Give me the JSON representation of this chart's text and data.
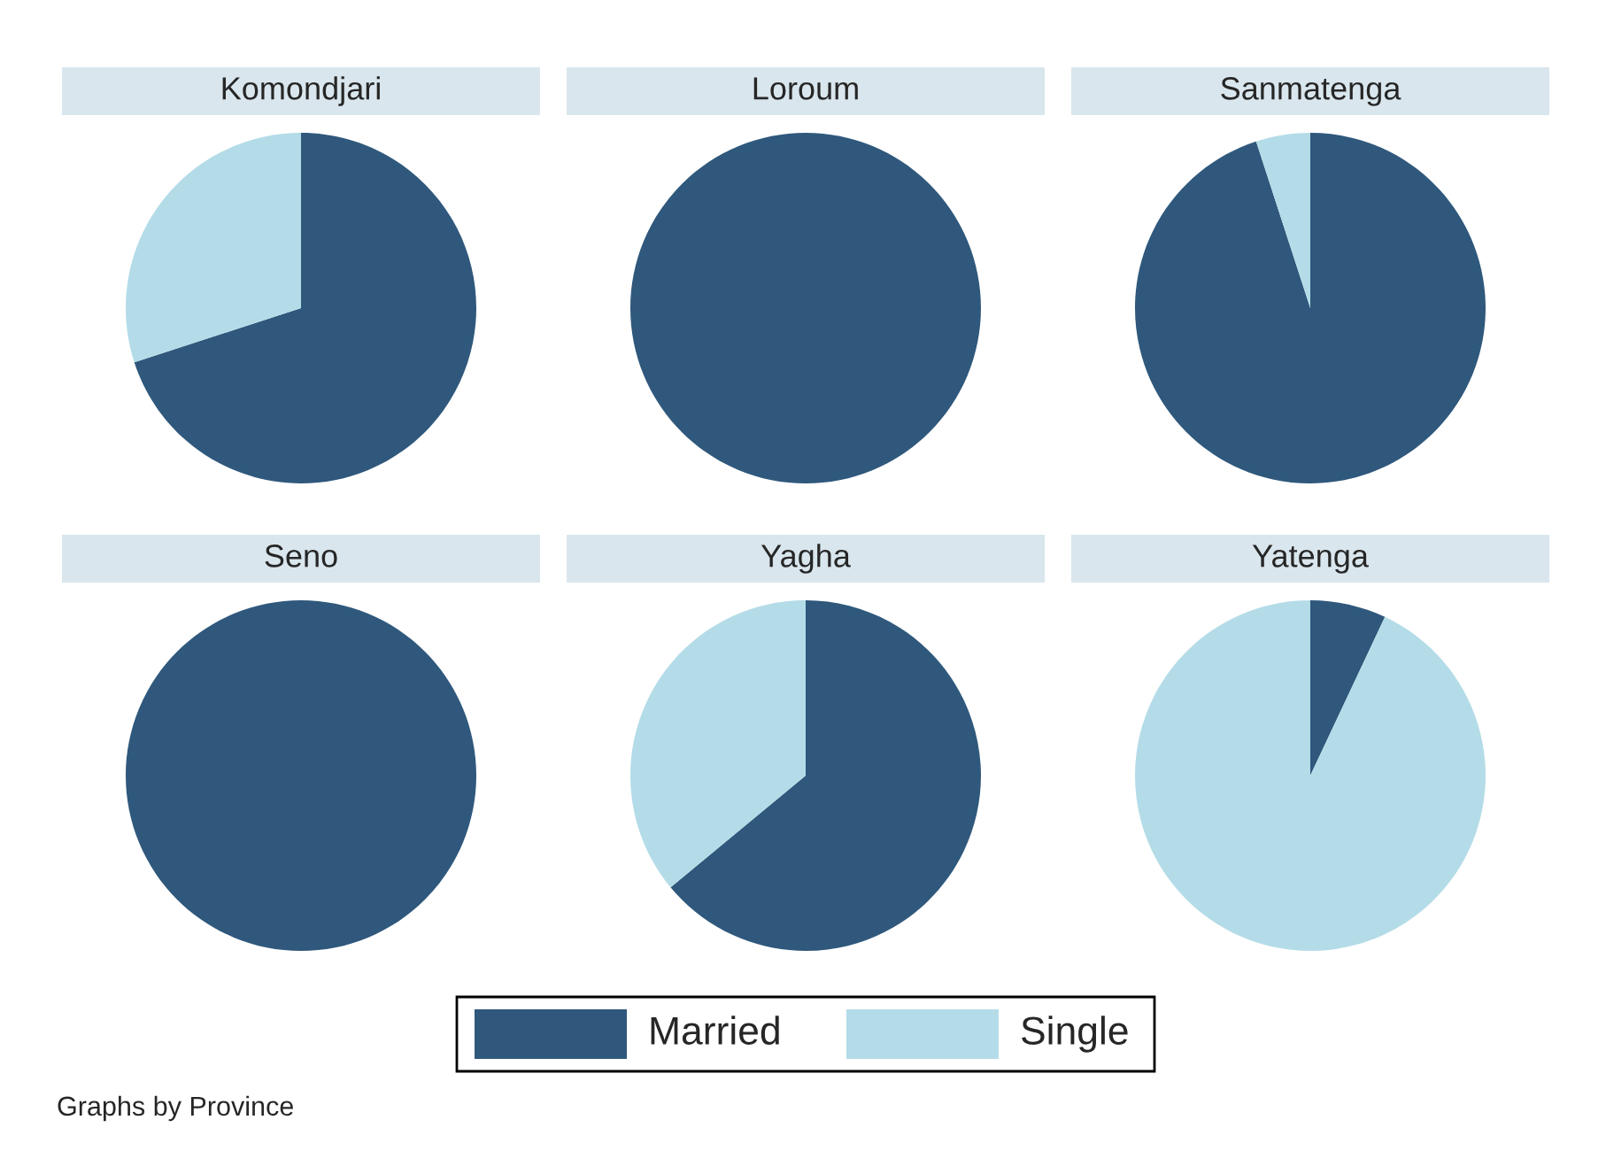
{
  "chart_data": [
    {
      "type": "pie",
      "title": "Komondjari",
      "categories": [
        "Married",
        "Single"
      ],
      "values": [
        70,
        30
      ],
      "colors": [
        "#2f587c",
        "#b4dce8"
      ],
      "legend": "bottom",
      "annotations": [
        "Graphs by Province"
      ]
    },
    {
      "type": "pie",
      "title": "Loroum",
      "categories": [
        null,
        null
      ],
      "values": [
        100,
        0
      ],
      "colors": [
        "#2f587c",
        "#b4dce8"
      ]
    },
    {
      "type": "pie",
      "title": "Sanmatenga",
      "categories": [
        null,
        null
      ],
      "values": [
        95,
        5
      ],
      "colors": [
        "#2f587c",
        "#b4dce8"
      ]
    },
    {
      "type": "pie",
      "title": "Seno",
      "categories": [
        null,
        null
      ],
      "values": [
        100,
        0
      ],
      "colors": [
        "#2f587c",
        "#b4dce8"
      ]
    },
    {
      "type": "pie",
      "title": "Yagha",
      "categories": [
        null,
        null
      ],
      "values": [
        64,
        36
      ],
      "colors": [
        "#2f587c",
        "#b4dce8"
      ]
    },
    {
      "type": "pie",
      "title": "Yatenga",
      "categories": [
        null,
        null
      ],
      "values": [
        7,
        93
      ],
      "colors": [
        "#2f587c",
        "#b4dce8"
      ]
    }
  ]
}
